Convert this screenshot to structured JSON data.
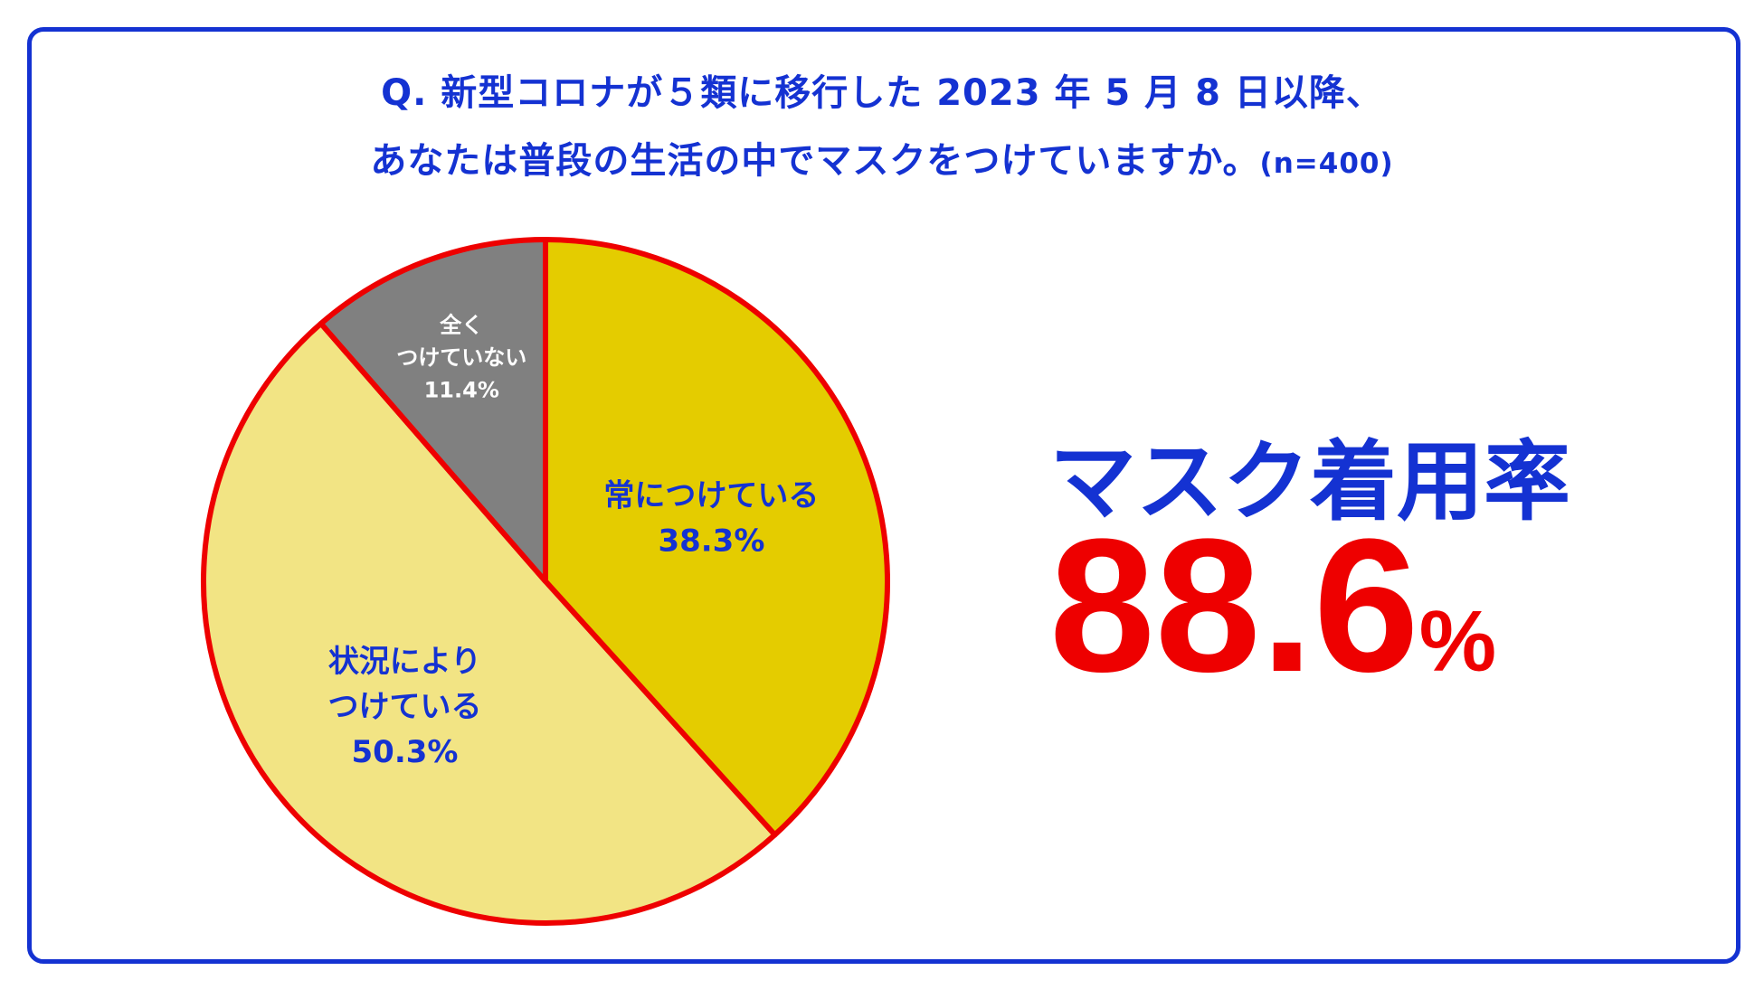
{
  "title": {
    "line1": "Q. 新型コロナが５類に移行した 2023 年 5 月 8 日以降、",
    "line2": "あなたは普段の生活の中でマスクをつけていますか。",
    "n": "(n=400)"
  },
  "highlight": {
    "label": "マスク着用率",
    "value": "88.6",
    "unit": "%"
  },
  "chart_data": {
    "type": "pie",
    "slices": [
      {
        "label_lines": [
          "常につけている"
        ],
        "value": 38.3,
        "value_text": "38.3%",
        "color": "#e4cc00",
        "text_color": "#1432d2"
      },
      {
        "label_lines": [
          "状況により",
          "つけている"
        ],
        "value": 50.3,
        "value_text": "50.3%",
        "color": "#f2e484",
        "text_color": "#1432d2"
      },
      {
        "label_lines": [
          "全く",
          "つけていない"
        ],
        "value": 11.4,
        "value_text": "11.4%",
        "color": "#808080",
        "text_color": "#ffffff"
      }
    ],
    "start": "12 o'clock",
    "direction": "clockwise",
    "highlight_outline_color": "#ee0000",
    "neutral_outline_color": "#ee0000"
  }
}
